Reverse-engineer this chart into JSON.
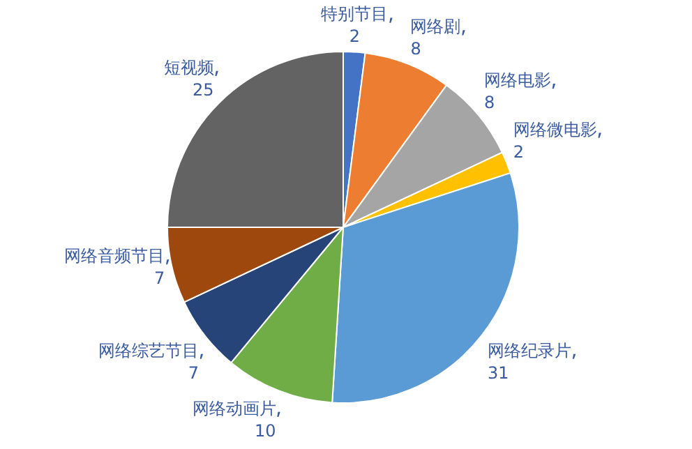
{
  "chart_data": {
    "type": "pie",
    "categories": [
      "特别节目",
      "网络剧",
      "网络电影",
      "网络微电影",
      "网络纪录片",
      "网络动画片",
      "网络综艺节目",
      "网络音频节目",
      "短视频"
    ],
    "values": [
      2,
      8,
      8,
      2,
      31,
      10,
      7,
      7,
      25
    ],
    "colors": [
      "#4472c4",
      "#ed7d31",
      "#a5a5a5",
      "#ffc000",
      "#5b9bd5",
      "#70ad47",
      "#264478",
      "#9e480e",
      "#636363"
    ],
    "data_labels": true
  }
}
